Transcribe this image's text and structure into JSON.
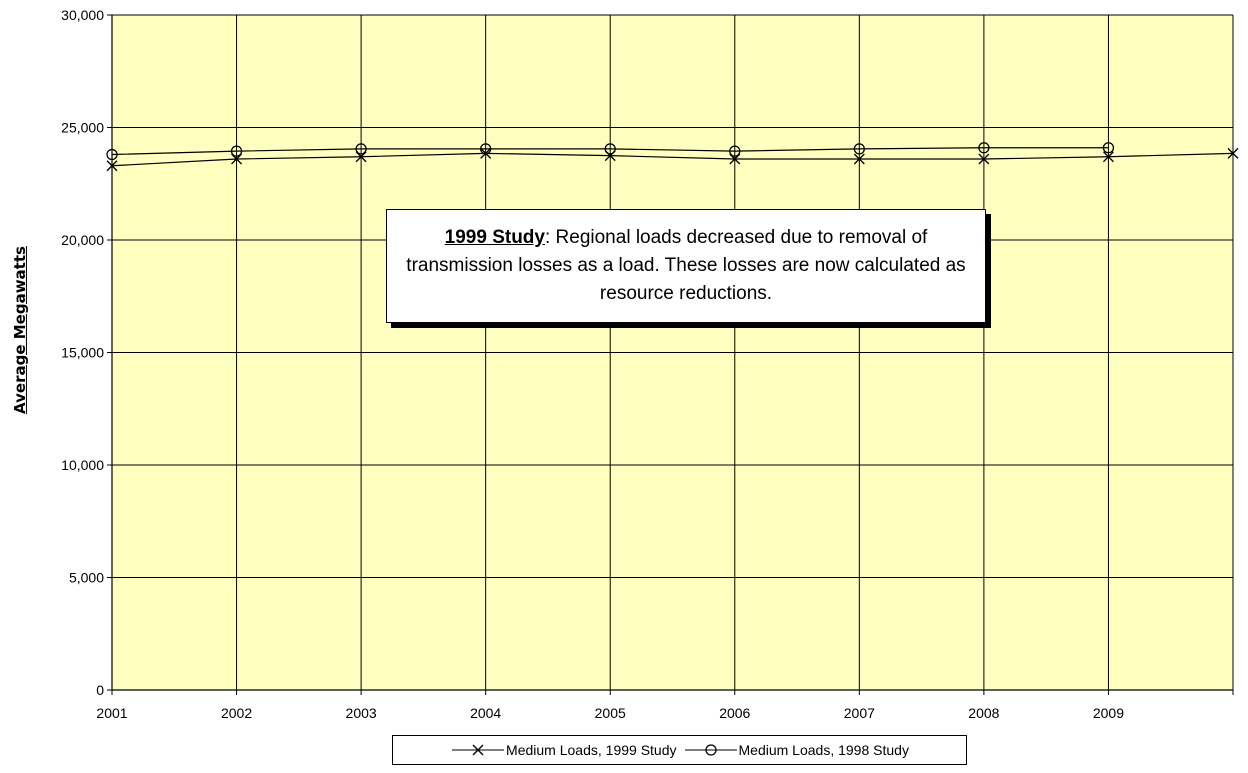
{
  "chart_data": {
    "type": "line",
    "ylabel": "Average Megawatts",
    "xlabel": "",
    "x": [
      2001,
      2002,
      2003,
      2004,
      2005,
      2006,
      2007,
      2008,
      2009
    ],
    "xlim": [
      2001,
      2010
    ],
    "ylim": [
      0,
      30000
    ],
    "y_ticks": [
      0,
      5000,
      10000,
      15000,
      20000,
      25000,
      30000
    ],
    "y_tick_labels": [
      "0",
      "5,000",
      "10,000",
      "15,000",
      "20,000",
      "25,000",
      "30,000"
    ],
    "x_tick_labels": [
      "2001",
      "2002",
      "2003",
      "2004",
      "2005",
      "2006",
      "2007",
      "2008",
      "2009"
    ],
    "grid": true,
    "plot_background": "#ffffc0",
    "legend_position": "bottom",
    "series": [
      {
        "name": "Medium Loads, 1999 Study",
        "marker": "x",
        "color": "#000000",
        "x": [
          2001,
          2002,
          2003,
          2004,
          2005,
          2006,
          2007,
          2008,
          2009,
          2010
        ],
        "values": [
          23300,
          23600,
          23700,
          23850,
          23750,
          23600,
          23600,
          23600,
          23700,
          23850
        ]
      },
      {
        "name": "Medium Loads, 1998 Study",
        "marker": "o",
        "color": "#000000",
        "x": [
          2001,
          2002,
          2003,
          2004,
          2005,
          2006,
          2007,
          2008,
          2009
        ],
        "values": [
          23800,
          23950,
          24050,
          24050,
          24050,
          23950,
          24050,
          24100,
          24100
        ]
      }
    ],
    "annotation": {
      "title": "1999 Study",
      "text": ": Regional loads decreased due to removal of transmission losses as a load.  These losses are now calculated as resource reductions."
    }
  }
}
